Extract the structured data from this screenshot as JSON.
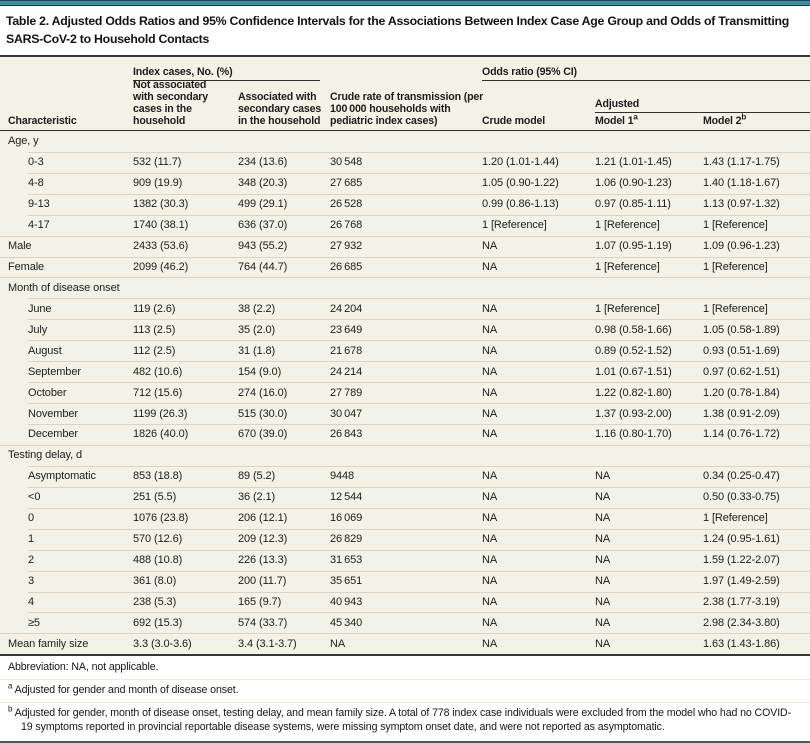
{
  "colors": {
    "teal_bar": "#3E8DA1",
    "table_background": "#F4F2E6",
    "row_separator": "#D8D5C5",
    "dark_rule": "#31383C"
  },
  "title": {
    "line1": "Table 2. Adjusted Odds Ratios and 95% Confidence Intervals for the Associations Between Index Case Age Group and Odds of Transmitting",
    "line2": "SARS-CoV-2 to Household Contacts"
  },
  "header": {
    "characteristic": "Characteristic",
    "spanner_index_cases": "Index cases, No. (%)",
    "spanner_odds_ratio": "Odds ratio (95% CI)",
    "spanner_adjusted": "Adjusted",
    "col_not_associated": "Not associated with secondary cases in the household",
    "col_associated": "Associated with secondary cases in the household",
    "col_crude_rate": "Crude rate of transmission (per 100 000 households with pediatric index cases)",
    "col_crude_model": "Crude model",
    "col_model1": "Model 1",
    "col_model1_sup": "a",
    "col_model2": "Model 2",
    "col_model2_sup": "b"
  },
  "table": {
    "rows": [
      {
        "type": "section",
        "label": "Age, y"
      },
      {
        "type": "data",
        "indent": true,
        "cells": [
          "0-3",
          "532 (11.7)",
          "234 (13.6)",
          "30 548",
          "1.20 (1.01-1.44)",
          "1.21 (1.01-1.45)",
          "1.43 (1.17-1.75)"
        ]
      },
      {
        "type": "data",
        "indent": true,
        "cells": [
          "4-8",
          "909 (19.9)",
          "348 (20.3)",
          "27 685",
          "1.05 (0.90-1.22)",
          "1.06 (0.90-1.23)",
          "1.40 (1.18-1.67)"
        ]
      },
      {
        "type": "data",
        "indent": true,
        "cells": [
          "9-13",
          "1382 (30.3)",
          "499 (29.1)",
          "26 528",
          "0.99 (0.86-1.13)",
          "0.97 (0.85-1.11)",
          "1.13 (0.97-1.32)"
        ]
      },
      {
        "type": "data",
        "indent": true,
        "cells": [
          "4-17",
          "1740 (38.1)",
          "636 (37.0)",
          "26 768",
          "1 [Reference]",
          "1 [Reference]",
          "1 [Reference]"
        ]
      },
      {
        "type": "data",
        "indent": false,
        "cells": [
          "Male",
          "2433 (53.6)",
          "943 (55.2)",
          "27 932",
          "NA",
          "1.07 (0.95-1.19)",
          "1.09 (0.96-1.23)"
        ]
      },
      {
        "type": "data",
        "indent": false,
        "cells": [
          "Female",
          "2099 (46.2)",
          "764 (44.7)",
          "26 685",
          "NA",
          "1 [Reference]",
          "1 [Reference]"
        ]
      },
      {
        "type": "section",
        "label": "Month of disease onset"
      },
      {
        "type": "data",
        "indent": true,
        "cells": [
          "June",
          "119 (2.6)",
          "38 (2.2)",
          "24 204",
          "NA",
          "1 [Reference]",
          "1 [Reference]"
        ]
      },
      {
        "type": "data",
        "indent": true,
        "cells": [
          "July",
          "113 (2.5)",
          "35 (2.0)",
          "23 649",
          "NA",
          "0.98 (0.58-1.66)",
          "1.05 (0.58-1.89)"
        ]
      },
      {
        "type": "data",
        "indent": true,
        "cells": [
          "August",
          "112 (2.5)",
          "31 (1.8)",
          "21 678",
          "NA",
          "0.89 (0.52-1.52)",
          "0.93 (0.51-1.69)"
        ]
      },
      {
        "type": "data",
        "indent": true,
        "cells": [
          "September",
          "482 (10.6)",
          "154 (9.0)",
          "24 214",
          "NA",
          "1.01 (0.67-1.51)",
          "0.97 (0.62-1.51)"
        ]
      },
      {
        "type": "data",
        "indent": true,
        "cells": [
          "October",
          "712 (15.6)",
          "274 (16.0)",
          "27 789",
          "NA",
          "1.22 (0.82-1.80)",
          "1.20 (0.78-1.84)"
        ]
      },
      {
        "type": "data",
        "indent": true,
        "cells": [
          "November",
          "1199 (26.3)",
          "515 (30.0)",
          "30 047",
          "NA",
          "1.37 (0.93-2.00)",
          "1.38 (0.91-2.09)"
        ]
      },
      {
        "type": "data",
        "indent": true,
        "cells": [
          "December",
          "1826 (40.0)",
          "670 (39.0)",
          "26 843",
          "NA",
          "1.16 (0.80-1.70)",
          "1.14 (0.76-1.72)"
        ]
      },
      {
        "type": "section",
        "label": "Testing delay, d"
      },
      {
        "type": "data",
        "indent": true,
        "cells": [
          "Asymptomatic",
          "853 (18.8)",
          "89 (5.2)",
          "9448",
          "NA",
          "NA",
          "0.34 (0.25-0.47)"
        ]
      },
      {
        "type": "data",
        "indent": true,
        "cells": [
          "<0",
          "251 (5.5)",
          "36 (2.1)",
          "12 544",
          "NA",
          "NA",
          "0.50 (0.33-0.75)"
        ]
      },
      {
        "type": "data",
        "indent": true,
        "cells": [
          "0",
          "1076 (23.8)",
          "206 (12.1)",
          "16 069",
          "NA",
          "NA",
          "1 [Reference]"
        ]
      },
      {
        "type": "data",
        "indent": true,
        "cells": [
          "1",
          "570 (12.6)",
          "209 (12.3)",
          "26 829",
          "NA",
          "NA",
          "1.24 (0.95-1.61)"
        ]
      },
      {
        "type": "data",
        "indent": true,
        "cells": [
          "2",
          "488 (10.8)",
          "226 (13.3)",
          "31 653",
          "NA",
          "NA",
          "1.59 (1.22-2.07)"
        ]
      },
      {
        "type": "data",
        "indent": true,
        "cells": [
          "3",
          "361 (8.0)",
          "200 (11.7)",
          "35 651",
          "NA",
          "NA",
          "1.97 (1.49-2.59)"
        ]
      },
      {
        "type": "data",
        "indent": true,
        "cells": [
          "4",
          "238 (5.3)",
          "165 (9.7)",
          "40 943",
          "NA",
          "NA",
          "2.38 (1.77-3.19)"
        ]
      },
      {
        "type": "data",
        "indent": true,
        "cells": [
          "≥5",
          "692 (15.3)",
          "574 (33.7)",
          "45 340",
          "NA",
          "NA",
          "2.98 (2.34-3.80)"
        ]
      },
      {
        "type": "data",
        "indent": false,
        "cells": [
          "Mean family size",
          "3.3 (3.0-3.6)",
          "3.4 (3.1-3.7)",
          "NA",
          "NA",
          "NA",
          "1.63 (1.43-1.86)"
        ]
      }
    ]
  },
  "footnotes": {
    "items": [
      {
        "marker": "",
        "text": "Abbreviation: NA, not applicable."
      },
      {
        "marker": "a",
        "text": "Adjusted for gender and month of disease onset."
      },
      {
        "marker": "b",
        "text": "Adjusted for gender, month of disease onset, testing delay, and mean family size. A total of 778 index case individuals were excluded from the model who had no COVID-19 symptoms reported in provincial reportable disease systems, were missing symptom onset date, and were not reported as asymptomatic."
      }
    ]
  }
}
